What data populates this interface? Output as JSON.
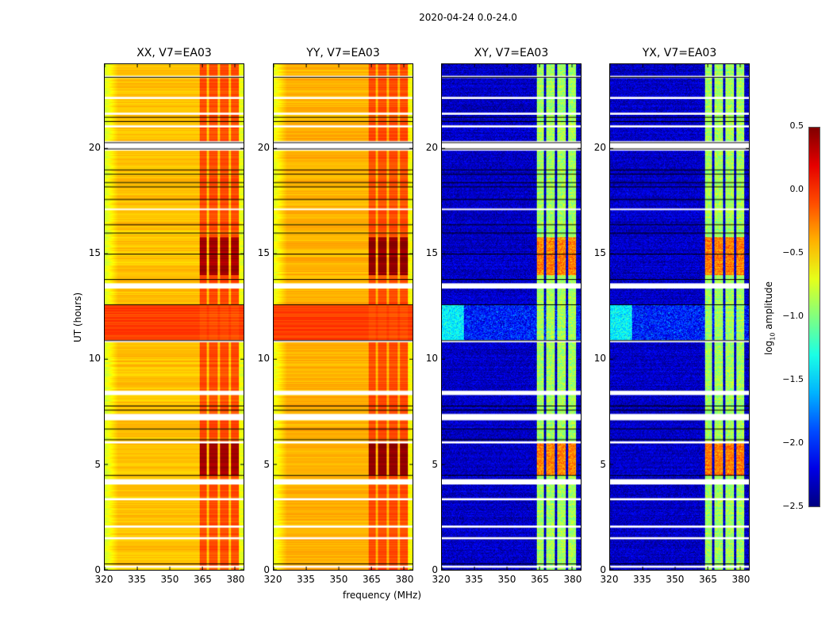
{
  "chart_data": {
    "type": "heatmap",
    "suptitle": "2020-04-24 0.0-24.0",
    "xlabel": "frequency (MHz)",
    "ylabel": "UT (hours)",
    "xlim": [
      320,
      384
    ],
    "ylim": [
      0,
      24
    ],
    "xticks": [
      "320",
      "335",
      "350",
      "365",
      "380"
    ],
    "yticks": [
      "0",
      "5",
      "10",
      "15",
      "20"
    ],
    "colorbar": {
      "label_prefix": "log",
      "label_sub": "10",
      "label_suffix": " amplitude",
      "range": [
        -2.5,
        0.5
      ],
      "ticks": [
        "0.5",
        "0.0",
        "−0.5",
        "−1.0",
        "−1.5",
        "−2.0",
        "−2.5"
      ],
      "colormap": "jet"
    },
    "panels": [
      {
        "title": "XX, V7=EA03",
        "base": -0.45,
        "band": -0.1,
        "peak": 0.4,
        "hot": -0.05
      },
      {
        "title": "YY, V7=EA03",
        "base": -0.4,
        "band": -0.1,
        "peak": 0.45,
        "hot": -0.05
      },
      {
        "title": "XY, V7=EA03",
        "base": -2.3,
        "band": -0.9,
        "peak": -0.25,
        "hot": -1.6
      },
      {
        "title": "YX, V7=EA03",
        "base": -2.3,
        "band": -0.9,
        "peak": -0.25,
        "hot": -1.6
      }
    ],
    "channel_bands_mhz": [
      [
        363.5,
        367
      ],
      [
        368,
        372
      ],
      [
        373,
        377
      ],
      [
        378,
        381.5
      ]
    ],
    "high_activity_hours": [
      [
        4.5,
        6.0
      ],
      [
        14.0,
        15.8
      ]
    ],
    "elevated_hours": [
      [
        10.9,
        12.6
      ]
    ],
    "flagged_hours": [
      [
        0.1,
        0.2
      ],
      [
        1.45,
        1.55
      ],
      [
        2.0,
        2.1
      ],
      [
        3.3,
        3.4
      ],
      [
        4.05,
        4.3
      ],
      [
        6.0,
        6.1
      ],
      [
        7.1,
        7.4
      ],
      [
        8.3,
        8.5
      ],
      [
        10.8,
        10.9
      ],
      [
        13.35,
        13.6
      ],
      [
        17.1,
        17.15
      ],
      [
        19.9,
        20.35
      ],
      [
        21.0,
        21.1
      ],
      [
        21.6,
        21.7
      ],
      [
        22.35,
        22.45
      ],
      [
        23.35,
        23.45
      ]
    ],
    "line_hours": [
      0.3,
      4.5,
      6.2,
      6.7,
      7.6,
      7.8,
      10.9,
      12.6,
      13.8,
      15.0,
      16.0,
      16.4,
      17.6,
      18.2,
      18.4,
      18.8,
      19.0,
      20.0,
      20.3,
      21.3,
      21.5,
      23.4
    ]
  }
}
